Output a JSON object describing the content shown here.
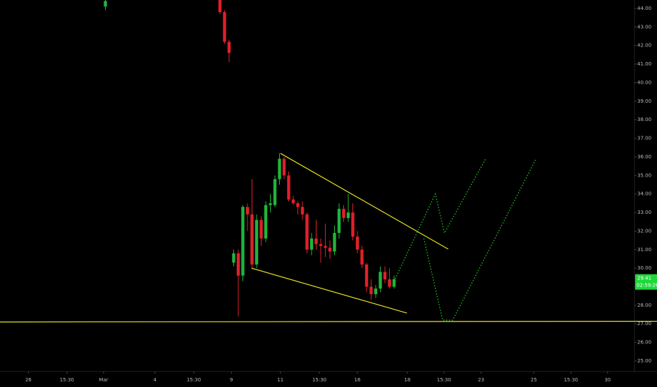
{
  "chart_data": {
    "type": "candlestick",
    "x": [
      23,
      48,
      49,
      50,
      51,
      52,
      53,
      54,
      55,
      56,
      57,
      58,
      59,
      60,
      61,
      62,
      63,
      64,
      65,
      66,
      67,
      68,
      69,
      70,
      71,
      72,
      73,
      74,
      75,
      76,
      77,
      78,
      79,
      80,
      81,
      82,
      83,
      84,
      85,
      86
    ],
    "open": [
      44.1,
      44.5,
      43.8,
      42.2,
      30.3,
      30.8,
      29.6,
      33.3,
      32.9,
      30.2,
      32.6,
      31.6,
      33.4,
      33.4,
      34.8,
      35.9,
      35.0,
      33.7,
      33.5,
      33.3,
      32.9,
      31.0,
      31.6,
      31.3,
      31.2,
      31.1,
      30.9,
      31.9,
      33.2,
      32.7,
      33.0,
      31.7,
      31.0,
      30.2,
      29.0,
      28.6,
      28.9,
      29.8,
      29.4,
      29.0
    ],
    "high": [
      44.5,
      44.5,
      43.9,
      42.3,
      31.0,
      31.0,
      33.4,
      33.5,
      34.8,
      32.9,
      32.8,
      33.6,
      34.0,
      35.0,
      36.2,
      36.0,
      35.2,
      33.9,
      33.6,
      33.6,
      33.0,
      31.9,
      32.6,
      31.6,
      32.4,
      31.5,
      32.3,
      33.5,
      33.4,
      34.0,
      33.5,
      32.0,
      31.2,
      30.3,
      29.4,
      29.1,
      30.1,
      30.1,
      30.0,
      29.6
    ],
    "low": [
      43.9,
      43.7,
      42.1,
      41.1,
      30.1,
      27.4,
      29.3,
      32.0,
      30.0,
      30.0,
      31.2,
      31.4,
      33.0,
      33.3,
      34.5,
      34.8,
      33.6,
      33.4,
      32.9,
      32.6,
      30.8,
      30.7,
      31.0,
      30.3,
      30.6,
      30.5,
      30.7,
      31.6,
      32.5,
      32.5,
      31.5,
      30.8,
      30.0,
      28.7,
      28.3,
      28.4,
      28.7,
      29.2,
      28.9,
      28.9
    ],
    "close": [
      44.4,
      43.8,
      42.2,
      41.6,
      30.8,
      29.6,
      33.3,
      32.9,
      30.2,
      32.6,
      31.6,
      33.4,
      33.5,
      34.8,
      35.9,
      35.0,
      33.7,
      33.5,
      33.3,
      32.9,
      31.0,
      31.6,
      31.3,
      31.2,
      31.1,
      30.9,
      31.9,
      33.2,
      32.7,
      33.0,
      31.7,
      31.0,
      30.2,
      29.0,
      28.6,
      28.9,
      29.8,
      29.4,
      29.0,
      29.41
    ],
    "up_color": "#1fb53a",
    "down_color": "#e0202a",
    "xlim": [
      0,
      138.46
    ],
    "ylim": [
      24.43,
      44.455
    ],
    "xticks": [
      {
        "value": 6.2,
        "label": "26"
      },
      {
        "value": 14.6,
        "label": "15:30"
      },
      {
        "value": 22.6,
        "label": "Mar"
      },
      {
        "value": 33.8,
        "label": "4"
      },
      {
        "value": 42.3,
        "label": "15:30"
      },
      {
        "value": 50.5,
        "label": "9"
      },
      {
        "value": 61.2,
        "label": "11"
      },
      {
        "value": 69.7,
        "label": "15:30"
      },
      {
        "value": 78,
        "label": "16"
      },
      {
        "value": 88.9,
        "label": "18"
      },
      {
        "value": 96.9,
        "label": "15:30"
      },
      {
        "value": 105,
        "label": "23"
      },
      {
        "value": 116.5,
        "label": "25"
      },
      {
        "value": 124.6,
        "label": "15:30"
      },
      {
        "value": 132.6,
        "label": "30"
      }
    ],
    "yticks": [
      {
        "value": 25,
        "label": "25.00"
      },
      {
        "value": 26,
        "label": "26.00"
      },
      {
        "value": 27,
        "label": "27.00"
      },
      {
        "value": 28,
        "label": "28.00"
      },
      {
        "value": 29,
        "label": "29.00"
      },
      {
        "value": 30,
        "label": "30.00"
      },
      {
        "value": 31,
        "label": "31.00"
      },
      {
        "value": 32,
        "label": "32.00"
      },
      {
        "value": 33,
        "label": "33.00"
      },
      {
        "value": 34,
        "label": "34.00"
      },
      {
        "value": 35,
        "label": "35.00"
      },
      {
        "value": 36,
        "label": "36.00"
      },
      {
        "value": 37,
        "label": "37.00"
      },
      {
        "value": 38,
        "label": "38.00"
      },
      {
        "value": 39,
        "label": "39.00"
      },
      {
        "value": 40,
        "label": "40.00"
      },
      {
        "value": 41,
        "label": "41.00"
      },
      {
        "value": 42,
        "label": "42.00"
      },
      {
        "value": 43,
        "label": "43.00"
      },
      {
        "value": 44,
        "label": "44.00"
      }
    ],
    "last_price": 29.41,
    "countdown": "02:59:26",
    "last_price_color": "#1fd93a",
    "drawings": [
      {
        "style": "solid",
        "color": "#e8e022",
        "x": [
          61.2,
          97.8
        ],
        "y": [
          36.19,
          31.03
        ]
      },
      {
        "style": "solid",
        "color": "#e8e022",
        "x": [
          54.9,
          88.8
        ],
        "y": [
          30.0,
          27.58
        ]
      },
      {
        "style": "solid",
        "color": "#e8e022",
        "x": [
          0,
          143.4
        ],
        "y": [
          27.1,
          27.14
        ]
      },
      {
        "style": "dotted",
        "color": "#22c322",
        "x": [
          86,
          95,
          97,
          106
        ],
        "y": [
          29.3,
          34.0,
          31.9,
          35.9
        ]
      },
      {
        "style": "dotted",
        "color": "#22c322",
        "x": [
          92.5,
          96.6,
          98.8,
          117
        ],
        "y": [
          31.6,
          27.2,
          27.2,
          35.9
        ]
      }
    ]
  }
}
